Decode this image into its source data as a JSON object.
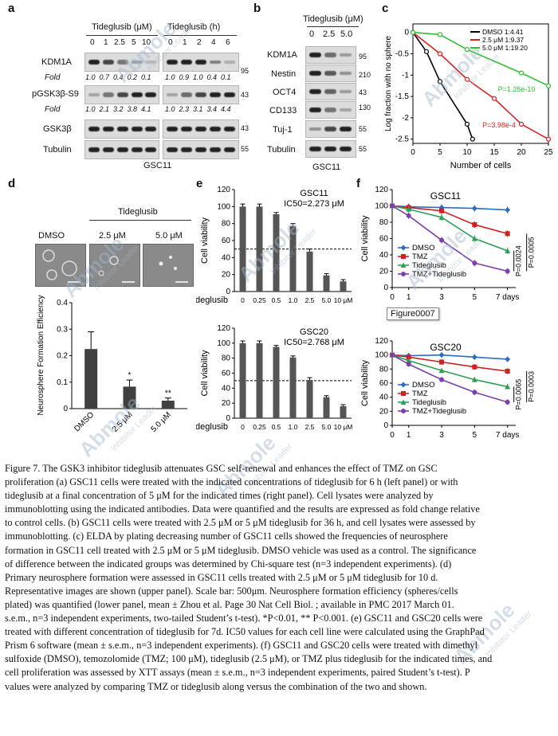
{
  "panel_letters": [
    "a",
    "b",
    "c",
    "d",
    "e",
    "f"
  ],
  "panel_a": {
    "header_left": "Tideglusib (μM)",
    "header_right": "Tideglusib (h)",
    "conc_ticks": [
      "0",
      "1",
      "2.5",
      "5",
      "10"
    ],
    "time_ticks": [
      "0",
      "1",
      "2",
      "4",
      "6"
    ],
    "rows": [
      "KDM1A",
      "Fold",
      "pGSK3β-S9",
      "Fold",
      "GSK3β",
      "Tubulin"
    ],
    "fold1_left": "1.0  0.7  0.4  0.2  0.1",
    "fold1_right": "1.0  0.9  1.0  0.4  0.1",
    "fold2_left": "1.0  2.1  3.2  3.8  4.1",
    "fold2_right": "1.0  2.3  3.1  3.4  4.4",
    "mw": [
      "95",
      "43",
      "43",
      "55"
    ],
    "cell_line": "GSC11"
  },
  "panel_b": {
    "header": "Tideglusib (μM)",
    "ticks": [
      "0",
      "2.5",
      "5.0"
    ],
    "rows": [
      "KDM1A",
      "Nestin",
      "OCT4",
      "CD133",
      "Tuj-1",
      "Tubulin"
    ],
    "mw": [
      "95",
      "210",
      "43",
      "130",
      "55",
      "55"
    ],
    "cell_line": "GSC11"
  },
  "panel_c": {
    "chart_data": {
      "type": "line",
      "ylabel": "Log fraction with no sphere",
      "xlabel": "Number of cells",
      "x_ticks": [
        "0",
        "5",
        "10",
        "15",
        "20",
        "25"
      ],
      "y_ticks": [
        "0",
        "-0.5",
        "-1",
        "-1.5",
        "-2",
        "-2.5"
      ],
      "xlim": [
        0,
        25
      ],
      "ylim": [
        -2.6,
        0.2
      ],
      "series": [
        {
          "name": "DMSO 1:4.41",
          "color": "#000000",
          "x": [
            0,
            2.5,
            5,
            10,
            11
          ],
          "y": [
            0,
            -0.45,
            -1.15,
            -2.15,
            -2.5
          ]
        },
        {
          "name": "2.5 μM 1:9.37",
          "color": "#e02020",
          "x": [
            0,
            5,
            10,
            15,
            20,
            25
          ],
          "y": [
            0,
            -0.5,
            -1.1,
            -1.55,
            -2.15,
            -2.5
          ]
        },
        {
          "name": "5.0 μM 1:19.20",
          "color": "#30c030",
          "x": [
            0,
            5,
            10,
            20,
            25
          ],
          "y": [
            0,
            -0.05,
            -0.4,
            -0.95,
            -1.25
          ]
        }
      ],
      "legend": [
        "DMSO 1:4.41",
        "2.5 μM 1:9.37",
        "5.0 μM 1:19.20"
      ],
      "annotations": [
        "P=1.26e-10",
        "P=3.98e-4"
      ]
    }
  },
  "panel_d": {
    "header": "Tideglusib",
    "image_labels": [
      "DMSO",
      "2.5 μM",
      "5.0 μM"
    ],
    "chart_data": {
      "type": "bar",
      "ylabel": "Neurosphere Formation Efficiency",
      "categories": [
        "DMSO",
        "2.5 μM",
        "5.0 μM"
      ],
      "values": [
        0.225,
        0.083,
        0.03
      ],
      "errors": [
        0.065,
        0.025,
        0.01
      ],
      "y_ticks": [
        "0",
        "0.1",
        "0.2",
        "0.3",
        "0.4"
      ],
      "ylim": [
        0,
        0.4
      ],
      "significance": [
        "",
        "*",
        "**"
      ]
    }
  },
  "panel_e": {
    "chart_data": [
      {
        "type": "bar",
        "title": "GSC11",
        "subtitle": "IC50=2.273 μM",
        "ylabel": "Cell viability",
        "xlabel": "Tideglusib",
        "categories": [
          "0",
          "0.25",
          "0.5",
          "1.0",
          "2.5",
          "5.0",
          "10 μM"
        ],
        "values": [
          100,
          100,
          91,
          77,
          47,
          19,
          12
        ],
        "errors": [
          3,
          3,
          2,
          3,
          3,
          2,
          2
        ],
        "y_ticks": [
          "0",
          "20",
          "40",
          "60",
          "80",
          "100",
          "120"
        ],
        "ylim": [
          0,
          120
        ],
        "dashed_line": 50
      },
      {
        "type": "bar",
        "title": "GSC20",
        "subtitle": "IC50=2.768 μM",
        "ylabel": "Cell viability",
        "xlabel": "Tideglusib",
        "categories": [
          "0",
          "0.25",
          "0.5",
          "1.0",
          "2.5",
          "5.0",
          "10 μM"
        ],
        "values": [
          100,
          100,
          95,
          81,
          51,
          28,
          16
        ],
        "errors": [
          3,
          3,
          2,
          2,
          3,
          2,
          2
        ],
        "y_ticks": [
          "0",
          "20",
          "40",
          "60",
          "80",
          "100",
          "120"
        ],
        "ylim": [
          0,
          120
        ],
        "dashed_line": 50
      }
    ]
  },
  "panel_f": {
    "chart_data": [
      {
        "type": "line",
        "title": "GSC11",
        "ylabel": "Cell viability",
        "xlabel": "days",
        "x": [
          0,
          1,
          3,
          5,
          7
        ],
        "x_ticks": [
          "0",
          "1",
          "3",
          "5",
          "7 days"
        ],
        "y_ticks": [
          "0",
          "20",
          "40",
          "60",
          "80",
          "100",
          "120"
        ],
        "ylim": [
          0,
          120
        ],
        "series": [
          {
            "name": "DMSO",
            "color": "#2b6cc4",
            "marker": "diamond",
            "values": [
              100,
              99,
              98,
              97,
              95
            ]
          },
          {
            "name": "TMZ",
            "color": "#d22020",
            "marker": "square",
            "values": [
              100,
              98,
              94,
              77,
              66
            ]
          },
          {
            "name": "Tideglusib",
            "color": "#2aa050",
            "marker": "triangle",
            "values": [
              100,
              96,
              86,
              60,
              45
            ]
          },
          {
            "name": "TMZ+Tideglusib",
            "color": "#7b3fb0",
            "marker": "x",
            "values": [
              100,
              88,
              58,
              30,
              20
            ]
          }
        ],
        "annotations": [
          "P=0.0024",
          "P=0.0005"
        ]
      },
      {
        "type": "line",
        "title": "GSC20",
        "ylabel": "Cell viability",
        "xlabel": "days",
        "x": [
          0,
          1,
          3,
          5,
          7
        ],
        "x_ticks": [
          "0",
          "1",
          "3",
          "5",
          "7 days"
        ],
        "y_ticks": [
          "0",
          "20",
          "40",
          "60",
          "80",
          "100",
          "120"
        ],
        "ylim": [
          0,
          120
        ],
        "series": [
          {
            "name": "DMSO",
            "color": "#2b6cc4",
            "marker": "diamond",
            "values": [
              100,
              99,
              100,
              97,
              94
            ]
          },
          {
            "name": "TMZ",
            "color": "#d22020",
            "marker": "square",
            "values": [
              100,
              97,
              90,
              83,
              77
            ]
          },
          {
            "name": "Tideglusib",
            "color": "#2aa050",
            "marker": "triangle",
            "values": [
              100,
              92,
              78,
              65,
              55
            ]
          },
          {
            "name": "TMZ+Tideglusib",
            "color": "#7b3fb0",
            "marker": "x",
            "values": [
              100,
              87,
              65,
              47,
              33
            ]
          }
        ],
        "annotations": [
          "P=0.0065",
          "P=0.0003"
        ]
      }
    ],
    "tooltip": "Figure0007"
  },
  "watermark": {
    "brand": "Abmole",
    "sub": "Inhibitor Leader"
  },
  "caption": {
    "lines": [
      "Figure 7. The GSK3 inhibitor tideglusib attenuates GSC self-renewal and enhances the effect of TMZ on GSC",
      "proliferation (a) GSC11 cells were treated with the indicated concentrations of tideglusib for 6 h (left panel) or with",
      "tideglusib at a final concentration of 5 μM for the indicated times (right panel). Cell lysates were analyzed by",
      "immunoblotting using the indicated antibodies. Data were quantified and the results are expressed as fold change relative",
      "to control cells. (b) GSC11 cells were treated with 2.5 μM or 5 μM tideglusib for 36 h, and cell lysates were assessed by",
      "immunoblotting. (c) ELDA by plating decreasing number of GSC11 cells showed the frequencies of neurosphere",
      "formation in GSC11 cell treated with 2.5 μM or 5 μM tideglusib. DMSO vehicle was used as a control. The significance",
      "of difference between the indicated groups was determined by Chi-square test (n=3 independent experiments). (d)",
      "Primary neurosphere formation were assessed in GSC11 cells treated with 2.5 μM or 5 μM tideglusib for 10 d.",
      "Representative images are shown (upper panel). Scale bar: 500μm. Neurosphere formation efficiency (spheres/cells",
      "plated) was quantified (lower panel, mean ± Zhou et al. Page 30 Nat Cell Biol.  ; available in PMC 2017 March 01.",
      "s.e.m., n=3 independent experiments, two-tailed Student’s t-test). *P<0.01, ** P<0.001. (e) GSC11 and GSC20 cells were",
      "treated with different concentration of tideglusib for 7d. IC50 values for each cell line were calculated using the GraphPad",
      "Prism 6 software (mean ± s.e.m., n=3 independent experiments). (f) GSC11 and GSC20 cells were treated with dimethyl",
      "sulfoxide (DMSO), temozolomide (TMZ; 100 μM), tideglusib (2.5 μM), or TMZ plus tideglusib for the indicated times, and",
      "cell proliferation was assessed by XTT assays (mean ± s.e.m., n=3 independent experiments, paired Student’s t-test). P",
      "values were analyzed by comparing TMZ or tideglusib along versus the combination of the two and shown."
    ]
  }
}
